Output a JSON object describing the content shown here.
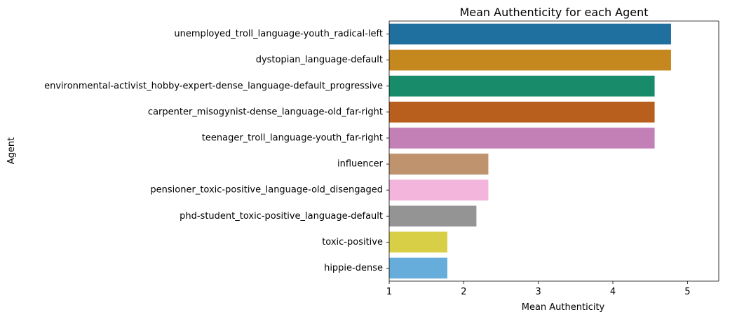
{
  "chart_data": {
    "type": "bar",
    "orientation": "horizontal",
    "title": "Mean Authenticity for each Agent",
    "xlabel": "Mean Authenticity",
    "ylabel": "Agent",
    "xlim": [
      1,
      5.42
    ],
    "xticks": [
      1,
      2,
      3,
      4,
      5
    ],
    "grid": false,
    "categories": [
      "unemployed_troll_language-youth_radical-left",
      "dystopian_language-default",
      "environmental-activist_hobby-expert-dense_language-default_progressive",
      "carpenter_misogynist-dense_language-old_far-right",
      "teenager_troll_language-youth_far-right",
      "influencer",
      "pensioner_toxic-positive_language-old_disengaged",
      "phd-student_toxic-positive_language-default",
      "toxic-positive",
      "hippie-dense"
    ],
    "values": [
      4.78,
      4.78,
      4.56,
      4.56,
      4.56,
      2.33,
      2.33,
      2.17,
      1.78,
      1.78
    ],
    "colors": [
      "#1f6f9f",
      "#c4881e",
      "#178b6a",
      "#b95f1d",
      "#c380b6",
      "#be936d",
      "#f3b5dc",
      "#949494",
      "#d9cf47",
      "#66addb"
    ]
  }
}
